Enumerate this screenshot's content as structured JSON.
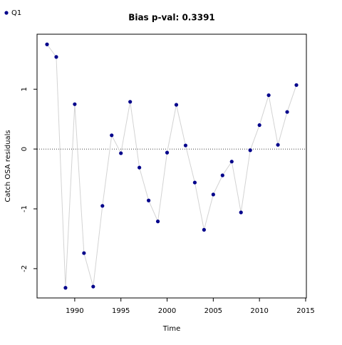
{
  "chart_data": {
    "type": "line",
    "title": "Bias p-val: 0.3391",
    "x_label": "Time",
    "y_label": "Catch OSA residuals",
    "x": [
      1987,
      1988,
      1989,
      1990,
      1991,
      1992,
      1993,
      1994,
      1995,
      1996,
      1997,
      1998,
      1999,
      2000,
      2001,
      2002,
      2003,
      2004,
      2005,
      2006,
      2007,
      2008,
      2009,
      2010,
      2011,
      2012,
      2013,
      2014
    ],
    "series": [
      {
        "name": "Q1",
        "color": "#00008b",
        "line_color": "#d3d3d3",
        "values": [
          1.75,
          1.54,
          -2.32,
          0.75,
          -1.74,
          -2.3,
          -0.95,
          0.23,
          -0.07,
          0.79,
          -0.31,
          -0.86,
          -1.21,
          -0.06,
          0.74,
          0.06,
          -0.56,
          -1.35,
          -0.76,
          -0.44,
          -0.21,
          -1.06,
          -0.02,
          0.4,
          0.9,
          0.07,
          0.62,
          1.07
        ]
      }
    ],
    "xlim": [
      1985.92,
      2015.08
    ],
    "ylim": [
      -2.49,
      1.92
    ],
    "xticks": [
      1990,
      1995,
      2000,
      2005,
      2010,
      2015
    ],
    "yticks": [
      -2,
      -1,
      0,
      1
    ],
    "hline": 0,
    "title_color": "#228b22",
    "legend_position": "top-left"
  }
}
